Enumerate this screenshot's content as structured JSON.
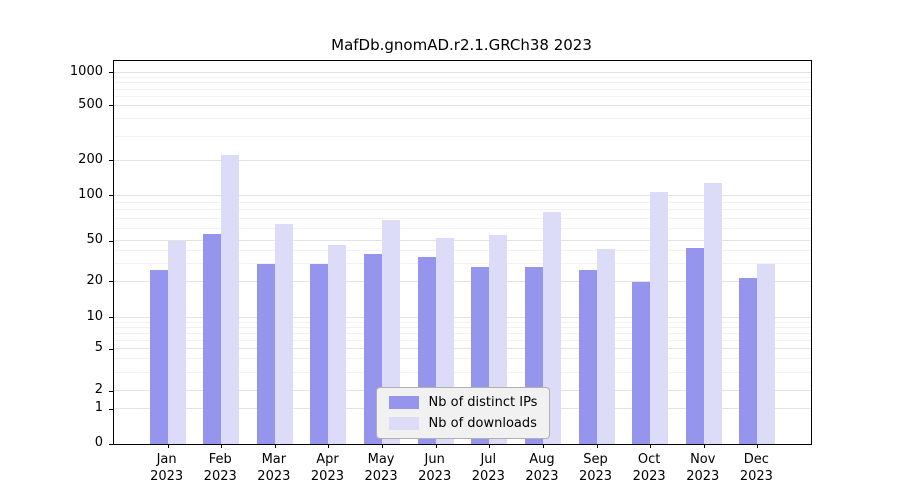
{
  "chart_data": {
    "type": "bar",
    "title": "MafDb.gnomAD.r2.1.GRCh38 2023",
    "year": "2023",
    "categories": [
      "Jan",
      "Feb",
      "Mar",
      "Apr",
      "May",
      "Jun",
      "Jul",
      "Aug",
      "Sep",
      "Oct",
      "Nov",
      "Dec"
    ],
    "series": [
      {
        "name": "Nb of distinct IPs",
        "color": "#9595ee",
        "values": [
          26,
          56,
          30,
          30,
          37,
          35,
          28,
          28,
          26,
          20,
          43,
          22
        ]
      },
      {
        "name": "Nb of downloads",
        "color": "#dcdcf8",
        "values": [
          50,
          220,
          65,
          46,
          69,
          52,
          55,
          78,
          42,
          108,
          130,
          30
        ]
      }
    ],
    "yscale": "log",
    "ylim": [
      0,
      1000
    ],
    "y_ticks": [
      0,
      1,
      2,
      5,
      10,
      20,
      50,
      100,
      200,
      500,
      1000
    ],
    "xlabel": "",
    "ylabel": "",
    "grid": true,
    "legend_position": "bottom-center"
  }
}
